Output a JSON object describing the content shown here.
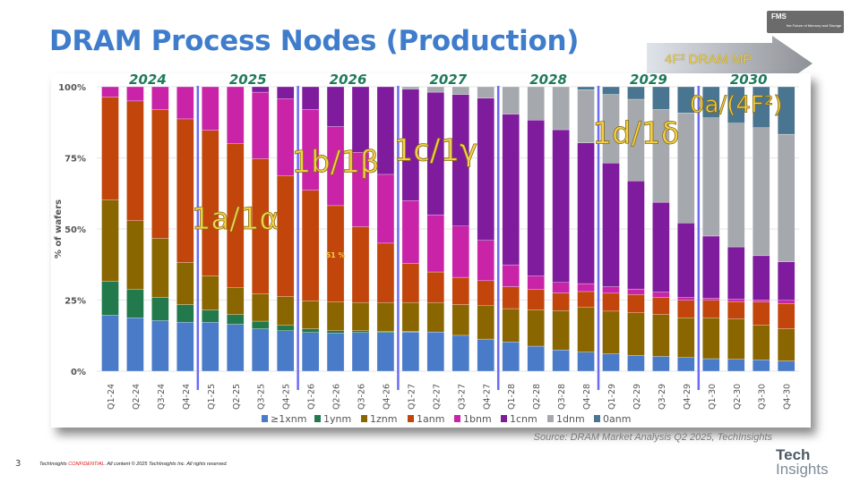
{
  "title": "DRAM Process Nodes (Production)",
  "arrow_label": "4F² DRAM MP",
  "fms_logo": {
    "letters": "FMS",
    "tagline": "the Future of Memory and Storage"
  },
  "source": "Source: DRAM Market Analysis Q2 2025, TechInsights",
  "footer": {
    "page_number": "3",
    "company": "TechInsights",
    "confidential": "CONFIDENTIAL",
    "rights": "All content © 2025 TechInsights Inc. All rights reserved."
  },
  "logo": {
    "line1": "Tech",
    "line2": "Insights"
  },
  "colors": {
    "title": "#3f7dcc",
    "year_label": "#1f7a5c",
    "separator": "#6b6bf5",
    "annotation": "#f2d24a"
  },
  "chart_data": {
    "type": "bar",
    "stacked": true,
    "title": "",
    "xlabel": "",
    "ylabel": "% of wafers",
    "ylim": [
      0,
      100
    ],
    "yticks": [
      "0%",
      "25%",
      "50%",
      "75%",
      "100%"
    ],
    "grid": true,
    "legend_position": "bottom",
    "categories": [
      "Q1-24",
      "Q2-24",
      "Q3-24",
      "Q4-24",
      "Q1-25",
      "Q2-25",
      "Q3-25",
      "Q4-25",
      "Q1-26",
      "Q2-26",
      "Q3-26",
      "Q4-26",
      "Q1-27",
      "Q2-27",
      "Q3-27",
      "Q4-27",
      "Q1-28",
      "Q2-28",
      "Q3-28",
      "Q4-28",
      "Q1-29",
      "Q2-29",
      "Q3-29",
      "Q4-29",
      "Q1-30",
      "Q2-30",
      "Q3-30",
      "Q4-30"
    ],
    "years": [
      "2024",
      "2025",
      "2026",
      "2027",
      "2028",
      "2029",
      "2030"
    ],
    "series": [
      {
        "name": "≥1xnm",
        "color": "#4a7bc8",
        "values": [
          19.7,
          18.8,
          17.8,
          17.2,
          17.2,
          16.5,
          14.9,
          14.2,
          13.6,
          13.4,
          13.6,
          13.6,
          13.8,
          13.8,
          12.6,
          11.3,
          10.3,
          8.8,
          7.5,
          6.7,
          6.1,
          5.6,
          5.2,
          4.8,
          4.4,
          4.2,
          4.0,
          3.6
        ]
      },
      {
        "name": "1ynm",
        "color": "#227a4c",
        "values": [
          11.9,
          10.0,
          8.1,
          6.2,
          4.3,
          3.4,
          2.7,
          1.9,
          1.3,
          0.8,
          0.6,
          0.4,
          0.2,
          0,
          0,
          0,
          0,
          0,
          0,
          0,
          0,
          0,
          0,
          0,
          0,
          0,
          0,
          0
        ]
      },
      {
        "name": "1znm",
        "color": "#8a6600",
        "values": [
          28.7,
          24.1,
          20.8,
          14.8,
          12.0,
          9.4,
          9.6,
          10.1,
          9.8,
          10.1,
          9.9,
          10.1,
          10.1,
          10.3,
          10.8,
          11.7,
          11.7,
          12.7,
          13.8,
          15.7,
          15.0,
          14.9,
          14.7,
          14.0,
          14.4,
          14.2,
          12.3,
          11.3
        ]
      },
      {
        "name": "1anm",
        "color": "#c2450c",
        "values": [
          36.1,
          42.1,
          45.3,
          50.5,
          51.2,
          50.8,
          47.5,
          42.6,
          38.9,
          33.9,
          26.7,
          20.9,
          13.8,
          10.8,
          9.6,
          8.8,
          7.7,
          7.2,
          6.2,
          5.6,
          6.3,
          6.5,
          6.0,
          6.1,
          6.1,
          6.1,
          8.0,
          8.9
        ]
      },
      {
        "name": "1bnm",
        "color": "#c924a8",
        "values": [
          3.6,
          5.0,
          8.0,
          11.3,
          15.3,
          19.9,
          23.4,
          27.0,
          28.4,
          27.8,
          26.2,
          24.2,
          22.1,
          20.1,
          18.0,
          14.2,
          7.7,
          4.8,
          3.7,
          2.8,
          2.3,
          1.9,
          1.9,
          1.0,
          0.8,
          0.8,
          0.8,
          1.1
        ]
      },
      {
        "name": "1cnm",
        "color": "#7f1b9d",
        "values": [
          0,
          0,
          0,
          0,
          0,
          0,
          1.9,
          4.2,
          8.0,
          14.0,
          23.0,
          30.8,
          39.2,
          43.1,
          46.3,
          50.0,
          53.0,
          54.8,
          53.7,
          49.5,
          43.5,
          38.0,
          31.6,
          26.2,
          21.8,
          18.4,
          15.5,
          13.6
        ]
      },
      {
        "name": "1dnm",
        "color": "#a5a9ae",
        "values": [
          0,
          0,
          0,
          0,
          0,
          0,
          0,
          0,
          0,
          0,
          0,
          0,
          0.8,
          1.9,
          2.7,
          4.0,
          9.6,
          11.7,
          15.1,
          18.7,
          24.1,
          28.7,
          32.6,
          38.7,
          41.6,
          43.5,
          45.0,
          44.8
        ]
      },
      {
        "name": "0anm",
        "color": "#4a7590",
        "values": [
          0,
          0,
          0,
          0,
          0,
          0,
          0,
          0,
          0,
          0,
          0,
          0,
          0,
          0,
          0,
          0,
          0,
          0,
          0,
          1.0,
          2.7,
          4.4,
          8.0,
          9.2,
          10.9,
          12.8,
          14.4,
          16.7
        ]
      }
    ],
    "annotations": [
      {
        "text": "1a/1α",
        "category": "Q2-25",
        "y": 50
      },
      {
        "text": "1b/1β",
        "category": "Q2-26",
        "y": 70
      },
      {
        "text": "51 %",
        "category": "Q2-26",
        "y": 40
      },
      {
        "text": "1c/1γ",
        "category": "Q2-27",
        "y": 74
      },
      {
        "text": "1d/1δ",
        "category": "Q2-29",
        "y": 80
      },
      {
        "text": "0a/(4F²)",
        "category": "Q2-30",
        "y": 93
      }
    ]
  }
}
